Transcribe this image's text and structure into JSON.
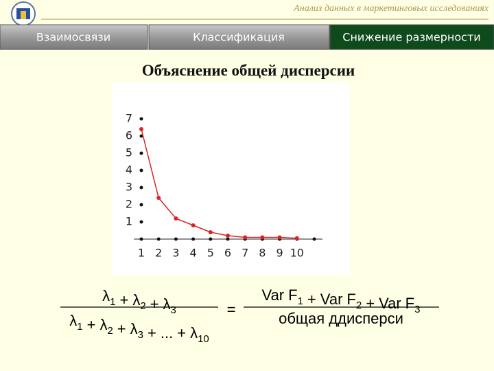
{
  "header": {
    "subtitle": "Анализ данных в маркетинговых исследованиях"
  },
  "tabs": [
    "Взаимосвязи",
    "Классификация",
    "Снижение размерности"
  ],
  "slide_title": "Объяснение общей дисперсии",
  "chart_data": {
    "type": "line",
    "x": [
      1,
      2,
      3,
      4,
      5,
      6,
      7,
      8,
      9,
      10
    ],
    "values": [
      6.4,
      2.4,
      1.2,
      0.8,
      0.4,
      0.2,
      0.1,
      0.1,
      0.1,
      0.05
    ],
    "color": "#dd2222",
    "xlim": [
      1,
      11
    ],
    "ylim": [
      0,
      7
    ],
    "xticks": [
      1,
      2,
      3,
      4,
      5,
      6,
      7,
      8,
      9,
      10
    ],
    "yticks": [
      1,
      2,
      3,
      4,
      5,
      6,
      7
    ]
  },
  "formula": {
    "left_numerator": [
      {
        "text": "λ",
        "sub": "1"
      },
      {
        "text": "+"
      },
      {
        "text": "λ",
        "sub": "2"
      },
      {
        "text": "+"
      },
      {
        "text": "λ",
        "sub": "3"
      }
    ],
    "left_denominator": [
      {
        "text": "λ",
        "sub": "1"
      },
      {
        "text": "+"
      },
      {
        "text": "λ",
        "sub": "2"
      },
      {
        "text": "+"
      },
      {
        "text": "λ",
        "sub": "3"
      },
      {
        "text": "+"
      },
      {
        "text": "..."
      },
      {
        "text": "+"
      },
      {
        "text": "λ",
        "sub": "10"
      }
    ],
    "equals": "=",
    "right_numerator": [
      {
        "text": "Var"
      },
      {
        "text": "F",
        "sub": "1"
      },
      {
        "text": "+"
      },
      {
        "text": "Var"
      },
      {
        "text": "F",
        "sub": "2"
      },
      {
        "text": "+"
      },
      {
        "text": "Var"
      },
      {
        "text": "F",
        "sub": "3"
      }
    ],
    "right_denominator": [
      {
        "text": "общая ддисперси"
      }
    ]
  }
}
